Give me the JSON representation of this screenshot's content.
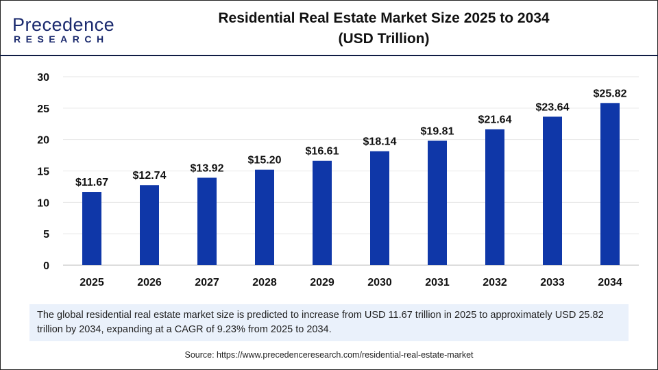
{
  "header": {
    "logo_line1": "Precedence",
    "logo_line2": "RESEARCH",
    "title_line1": "Residential Real Estate Market Size 2025 to 2034",
    "title_line2": "(USD Trillion)"
  },
  "chart_data": {
    "type": "bar",
    "title": "Residential Real Estate Market Size 2025 to 2034 (USD Trillion)",
    "categories": [
      "2025",
      "2026",
      "2027",
      "2028",
      "2029",
      "2030",
      "2031",
      "2032",
      "2033",
      "2034"
    ],
    "values": [
      11.67,
      12.74,
      13.92,
      15.2,
      16.61,
      18.14,
      19.81,
      21.64,
      23.64,
      25.82
    ],
    "data_labels": [
      "$11.67",
      "$12.74",
      "$13.92",
      "$15.20",
      "$16.61",
      "$18.14",
      "$19.81",
      "$21.64",
      "$23.64",
      "$25.82"
    ],
    "ylim": [
      0,
      30
    ],
    "yticks": [
      0,
      5,
      10,
      15,
      20,
      25,
      30
    ],
    "grid": true,
    "bar_color": "#0f37a8"
  },
  "caption": "The global residential real estate market size is predicted to increase from USD 11.67 trillion in 2025 to approximately USD 25.82 trillion by 2034, expanding at a CAGR of 9.23% from 2025 to 2034.",
  "source": "Source: https://www.precedenceresearch.com/residential-real-estate-market"
}
